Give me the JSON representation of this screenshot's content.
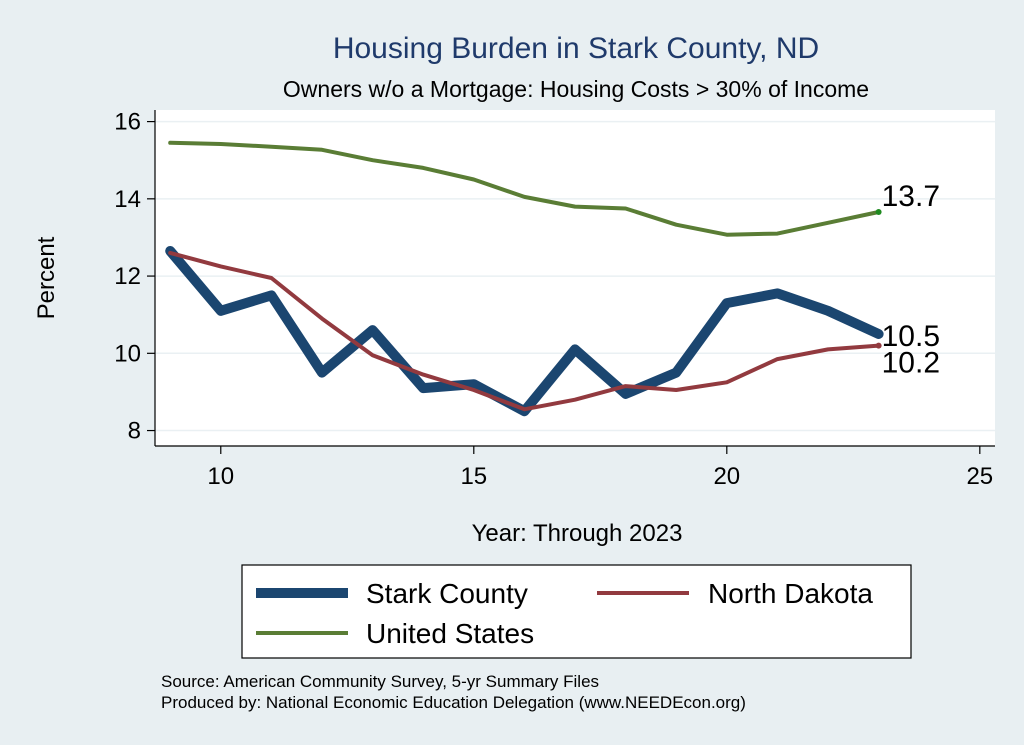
{
  "chart_data": {
    "type": "line",
    "title": "Housing Burden in Stark County, ND",
    "subtitle": "Owners w/o a Mortgage: Housing Costs > 30% of Income",
    "xlabel": "Year: Through 2023",
    "ylabel": "Percent",
    "xlim": [
      8.7,
      25.3
    ],
    "ylim": [
      7.6,
      16.3
    ],
    "x_ticks": [
      10,
      15,
      20,
      25
    ],
    "y_ticks": [
      8,
      10,
      12,
      14,
      16
    ],
    "grid": true,
    "legend_position": "bottom",
    "x": [
      9,
      10,
      11,
      12,
      13,
      14,
      15,
      16,
      17,
      18,
      19,
      20,
      21,
      22,
      23
    ],
    "series": [
      {
        "name": "Stark County",
        "color": "#1b4670",
        "values": [
          12.65,
          11.1,
          11.5,
          9.5,
          10.6,
          9.1,
          9.2,
          8.5,
          10.1,
          8.95,
          9.5,
          11.3,
          11.55,
          11.1,
          10.5
        ],
        "end_label": "10.5"
      },
      {
        "name": "North Dakota",
        "color": "#923a3f",
        "values": [
          12.6,
          12.25,
          11.95,
          10.9,
          9.95,
          9.45,
          9.05,
          8.55,
          8.8,
          9.15,
          9.05,
          9.25,
          9.85,
          10.1,
          10.2
        ],
        "end_label": "10.2"
      },
      {
        "name": "United States",
        "color": "#5a7d35",
        "values": [
          15.45,
          15.42,
          15.35,
          15.27,
          15.0,
          14.8,
          14.5,
          14.05,
          13.8,
          13.75,
          13.33,
          13.07,
          13.1,
          13.38,
          13.66
        ],
        "end_label": "13.7"
      }
    ]
  },
  "source_lines": [
    "Source: American Community Survey, 5-yr Summary Files",
    "Produced by: National Economic Education Delegation (www.NEEDEcon.org)"
  ]
}
